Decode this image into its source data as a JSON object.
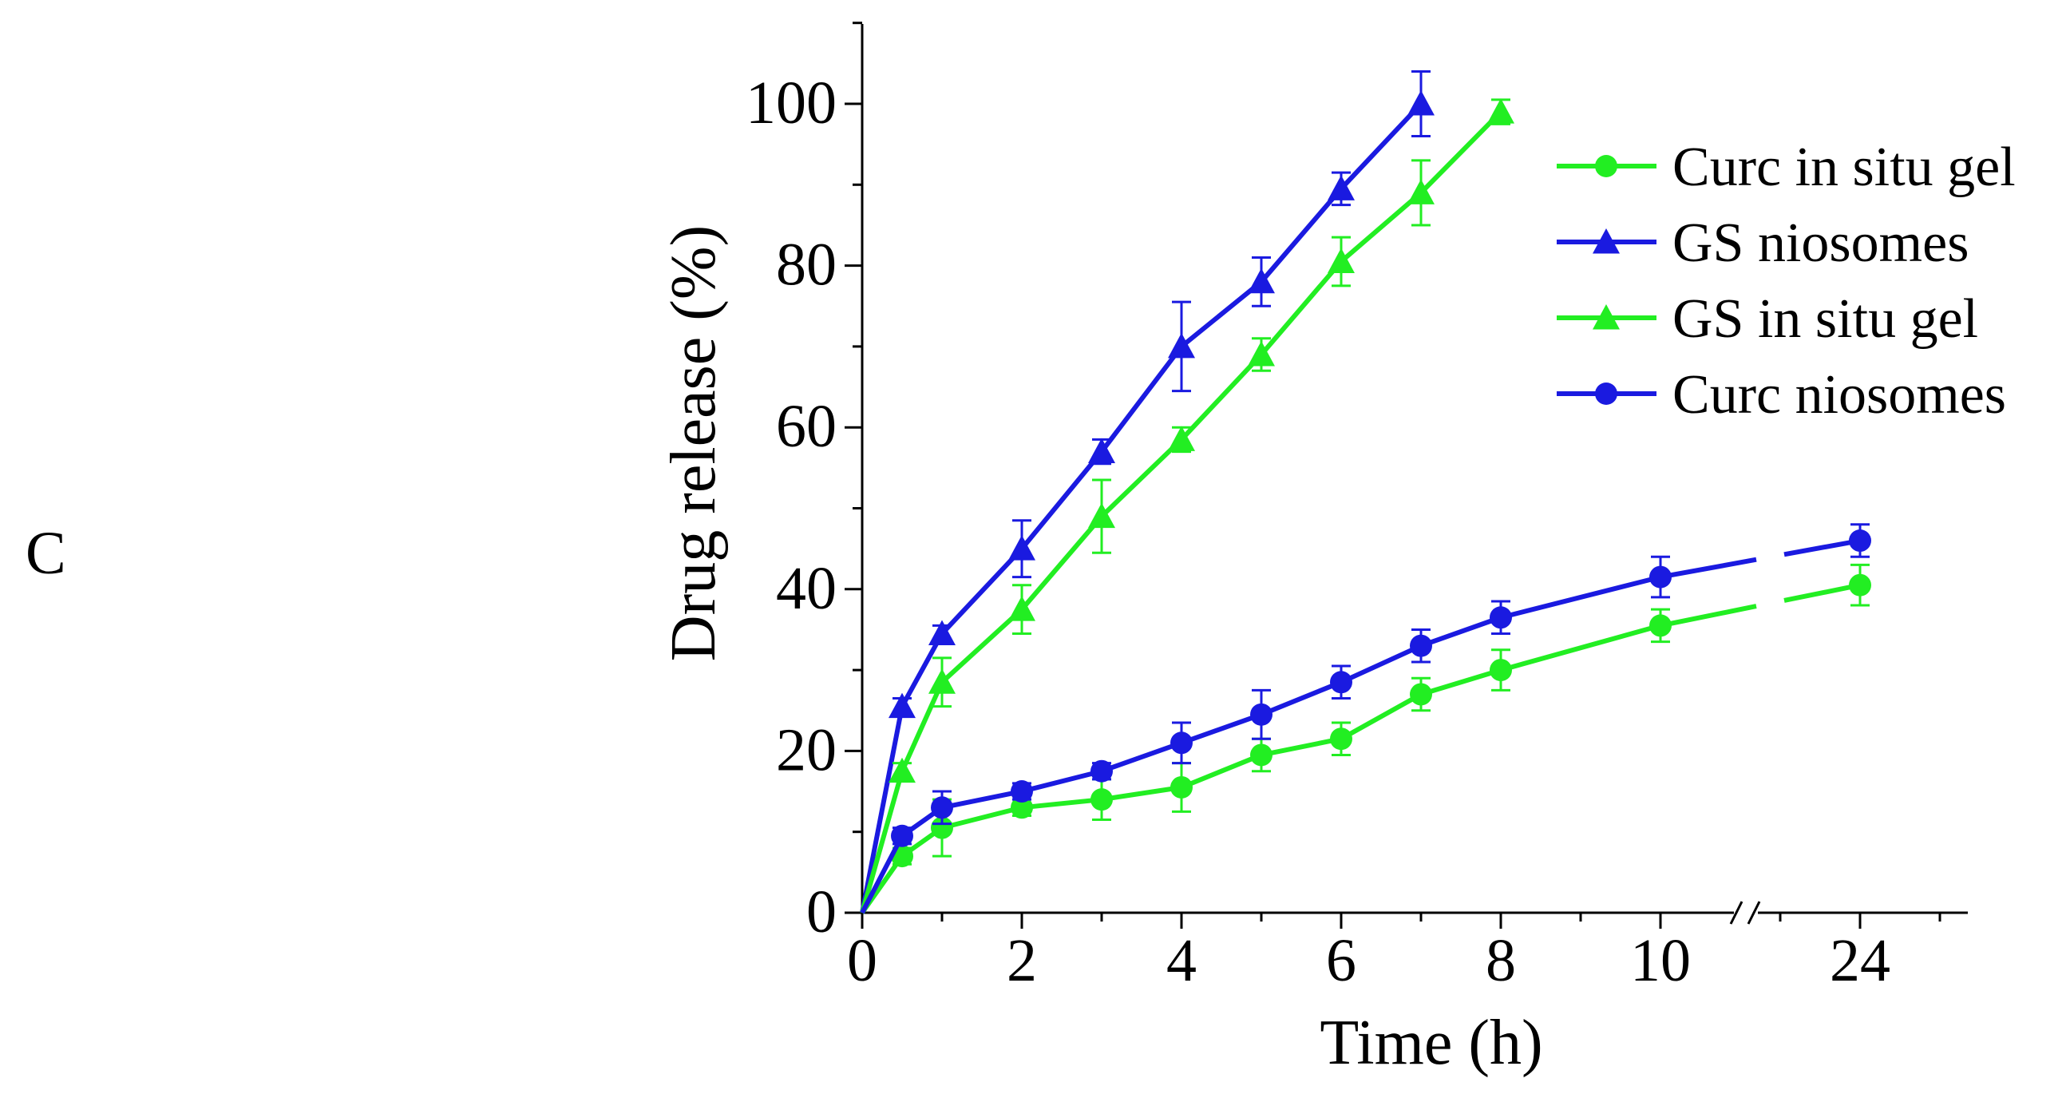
{
  "panel_label": "C",
  "chart_data": {
    "type": "line",
    "title": "",
    "xlabel": "Time (h)",
    "ylabel": "Drug release (%)",
    "xticks": [
      "0",
      "2",
      "4",
      "6",
      "8",
      "10",
      "24"
    ],
    "yticks": [
      "0",
      "20",
      "40",
      "60",
      "80",
      "100"
    ],
    "ylim": [
      0,
      110
    ],
    "axis_break": "between 10 and 24 h",
    "legend_position": "top-right",
    "series": [
      {
        "name": "Curc in situ gel",
        "color": "#22ee22",
        "marker": "circle",
        "x": [
          0,
          0.5,
          1,
          2,
          3,
          4,
          5,
          6,
          7,
          8,
          10,
          24
        ],
        "y": [
          0,
          7,
          10.5,
          13,
          14,
          15.5,
          19.5,
          21.5,
          27,
          30,
          35.5,
          40.5
        ],
        "err": [
          0,
          1,
          3.5,
          1,
          2.5,
          3,
          2,
          2,
          2,
          2.5,
          2,
          2.5
        ]
      },
      {
        "name": "GS niosomes",
        "color": "#1a1ae0",
        "marker": "triangle",
        "x": [
          0,
          0.5,
          1,
          2,
          3,
          4,
          5,
          6,
          7
        ],
        "y": [
          0,
          25.5,
          34.5,
          45,
          57,
          70,
          78,
          89.5,
          100
        ],
        "err": [
          0,
          1,
          1,
          3.5,
          1.5,
          5.5,
          3,
          2,
          4
        ]
      },
      {
        "name": "GS in situ gel",
        "color": "#22ee22",
        "marker": "triangle",
        "x": [
          0,
          0.5,
          1,
          2,
          3,
          4,
          5,
          6,
          7,
          8
        ],
        "y": [
          0,
          17.5,
          28.5,
          37.5,
          49,
          58.5,
          69,
          80.5,
          89,
          99
        ],
        "err": [
          0,
          1,
          3,
          3,
          4.5,
          1.5,
          2,
          3,
          4,
          1.5
        ]
      },
      {
        "name": "Curc niosomes",
        "color": "#1a1ae0",
        "marker": "circle",
        "x": [
          0,
          0.5,
          1,
          2,
          3,
          4,
          5,
          6,
          7,
          8,
          10,
          24
        ],
        "y": [
          0,
          9.5,
          13,
          15,
          17.5,
          21,
          24.5,
          28.5,
          33,
          36.5,
          41.5,
          46
        ],
        "err": [
          0,
          1,
          2,
          1,
          1,
          2.5,
          3,
          2,
          2,
          2,
          2.5,
          2
        ]
      }
    ]
  }
}
